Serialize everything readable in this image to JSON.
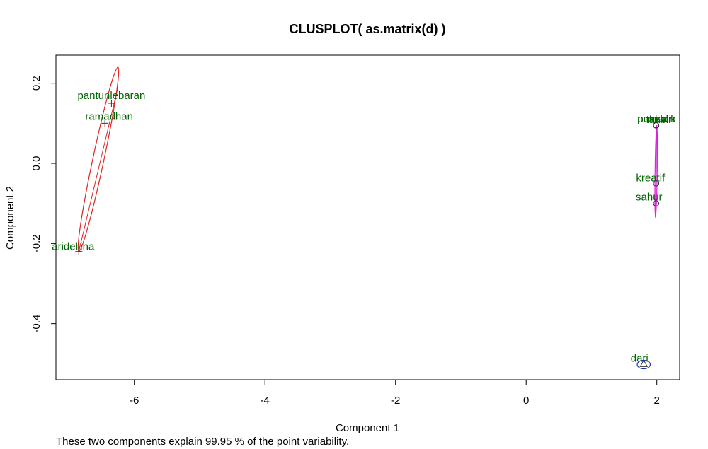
{
  "chart_data": {
    "type": "scatter",
    "title": "CLUSPLOT( as.matrix(d) )",
    "xlabel": "Component 1",
    "ylabel": "Component 2",
    "footnote": "These two components explain 99.95 % of the point variability.",
    "xlim": [
      -7.2,
      2.35
    ],
    "ylim": [
      -0.54,
      0.27
    ],
    "xticks": [
      -6,
      -4,
      -2,
      0,
      2
    ],
    "yticks": [
      0.2,
      0.0,
      -0.2,
      -0.4
    ],
    "ytick_labels": [
      "0.2",
      "0.0",
      "-0.2",
      "-0.4"
    ],
    "grid": false,
    "legend": "none",
    "points": [
      {
        "label": "pantunlebaran",
        "x": -6.35,
        "y": 0.15,
        "cluster": 1,
        "marker": "plus"
      },
      {
        "label": "ramadhan",
        "x": -6.45,
        "y": 0.1,
        "cluster": 1,
        "marker": "plus"
      },
      {
        "label": "arideliina",
        "x": -6.85,
        "y": -0.22,
        "cluster": 1,
        "marker": "plus"
      },
      {
        "label": "petasan",
        "x": 1.99,
        "y": 0.095,
        "cluster": 2,
        "marker": "circle"
      },
      {
        "label": "takbir",
        "x": 1.99,
        "y": 0.095,
        "cluster": 2,
        "marker": "circle"
      },
      {
        "label": "puasa",
        "x": 1.99,
        "y": 0.095,
        "cluster": 2,
        "marker": "circle"
      },
      {
        "label": "mudik",
        "x": 1.99,
        "y": 0.095,
        "cluster": 2,
        "marker": "circle"
      },
      {
        "label": "kreatif",
        "x": 1.99,
        "y": -0.05,
        "cluster": 2,
        "marker": "circle"
      },
      {
        "label": "sahur",
        "x": 1.99,
        "y": -0.1,
        "cluster": 2,
        "marker": "circle"
      },
      {
        "label": "dari",
        "x": 1.8,
        "y": -0.5,
        "cluster": 3,
        "marker": "triangle"
      }
    ],
    "clusters": [
      {
        "id": 1,
        "color": "#dd2222",
        "ellipse": {
          "center": [
            -6.55,
            0.01
          ],
          "axis": [
            [
              -6.85,
              -0.22
            ],
            [
              -6.25,
              0.24
            ]
          ],
          "half_width": 0.085
        }
      },
      {
        "id": 2,
        "color": "#dd22dd",
        "ellipse": {
          "center": [
            1.99,
            -0.02
          ],
          "axis": [
            [
              1.98,
              -0.135
            ],
            [
              2.0,
              0.095
            ]
          ],
          "half_width": 0.012
        }
      },
      {
        "id": 3,
        "color": "#2233aa",
        "ellipse": {
          "center": [
            1.8,
            -0.502
          ],
          "axis": [
            [
              1.7,
              -0.502
            ],
            [
              1.9,
              -0.502
            ]
          ],
          "half_width": 0.012
        }
      }
    ]
  }
}
